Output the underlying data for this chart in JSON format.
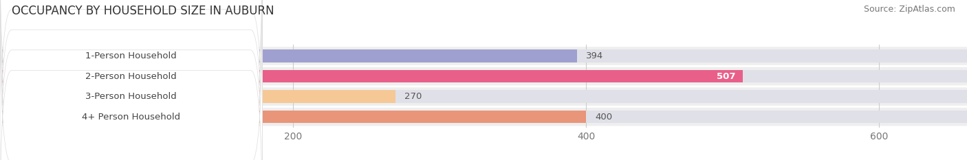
{
  "title": "OCCUPANCY BY HOUSEHOLD SIZE IN AUBURN",
  "source": "Source: ZipAtlas.com",
  "categories": [
    "1-Person Household",
    "2-Person Household",
    "3-Person Household",
    "4+ Person Household"
  ],
  "values": [
    394,
    507,
    270,
    400
  ],
  "bar_colors": [
    "#a0a0d0",
    "#e8608a",
    "#f5c896",
    "#e8957a"
  ],
  "bar_bg_color": "#e0e0e8",
  "xlim_max": 660,
  "xticks": [
    200,
    400,
    600
  ],
  "value_inside": [
    false,
    true,
    false,
    false
  ],
  "title_fontsize": 12,
  "source_fontsize": 9,
  "label_fontsize": 9.5,
  "value_fontsize": 9.5,
  "tick_fontsize": 10,
  "bar_height": 0.62,
  "background_color": "#ffffff",
  "row_bg_colors": [
    "#f0f0f5",
    "#f0f0f5",
    "#f0f0f5",
    "#f0f0f5"
  ]
}
